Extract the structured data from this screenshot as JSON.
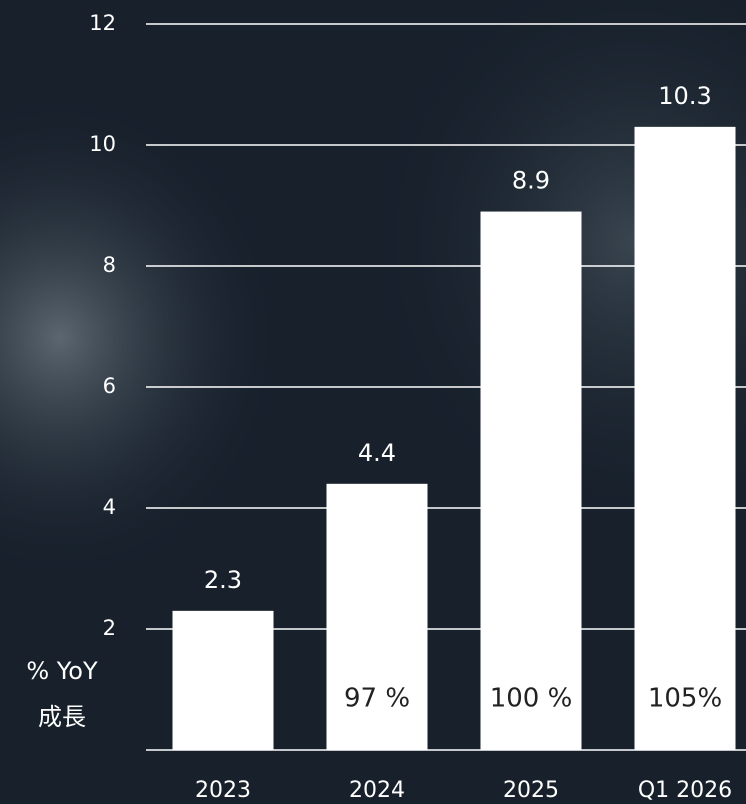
{
  "chart_data": {
    "type": "bar",
    "categories": [
      "2023",
      "2024",
      "2025",
      "Q1 2026"
    ],
    "values": [
      2.3,
      4.4,
      8.9,
      10.3
    ],
    "color": "#ffffff",
    "ylim": [
      0,
      12
    ],
    "yticks": [
      2,
      4,
      6,
      8,
      10,
      12
    ],
    "grid": true,
    "growth_label_lines": [
      "% YoY",
      "成長"
    ],
    "growth_labels": [
      null,
      "97 %",
      "100 %",
      "105%"
    ]
  }
}
